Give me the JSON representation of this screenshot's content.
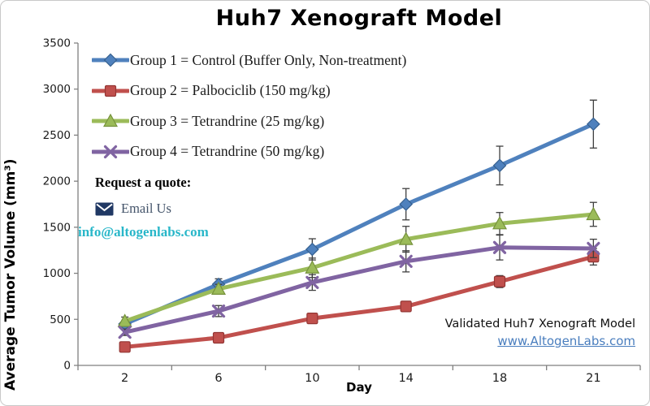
{
  "chart_data": {
    "type": "line",
    "title": "Huh7 Xenograft Model",
    "xlabel": "Day",
    "ylabel": "Average Tumor Volume (mm³)",
    "categories": [
      2,
      6,
      10,
      14,
      18,
      21
    ],
    "ylim": [
      0,
      3500
    ],
    "yticks": [
      0,
      500,
      1000,
      1500,
      2000,
      2500,
      3000,
      3500
    ],
    "grid": false,
    "legend_position": "top-left-inside",
    "error_bar_color": "#3f3f3f",
    "axis_color": "#7f7f7f",
    "series": [
      {
        "name": "group1",
        "label": "Group 1 = Control (Buffer Only, Non-treatment)",
        "color": "#4F81BD",
        "edge": "#36608f",
        "marker": "diamond",
        "values": [
          450,
          880,
          1260,
          1750,
          2170,
          2620
        ],
        "errors": [
          30,
          60,
          115,
          170,
          210,
          260
        ]
      },
      {
        "name": "group2",
        "label": "Group 2 = Palbociclib (150 mg/kg)",
        "color": "#C0504D",
        "edge": "#943634",
        "marker": "square",
        "values": [
          200,
          300,
          510,
          640,
          910,
          1180
        ],
        "errors": [
          20,
          25,
          35,
          45,
          65,
          90
        ]
      },
      {
        "name": "group3",
        "label": "Group 3 = Tetrandrine (25 mg/kg)",
        "color": "#9BBB59",
        "edge": "#76923c",
        "marker": "triangle",
        "values": [
          480,
          830,
          1060,
          1370,
          1540,
          1640
        ],
        "errors": [
          45,
          50,
          105,
          140,
          120,
          130
        ]
      },
      {
        "name": "group4",
        "label": "Group 4 = Tetrandrine (50 mg/kg)",
        "color": "#8064A2",
        "edge": "#5f497a",
        "marker": "x",
        "values": [
          360,
          590,
          900,
          1130,
          1280,
          1270
        ],
        "errors": [
          35,
          60,
          85,
          115,
          135,
          100
        ]
      }
    ]
  },
  "quote": {
    "heading": "Request a quote:",
    "email_label": "Email Us",
    "email_label_color": "#44546A",
    "email_address": "info@altogenlabs.com",
    "email_address_color": "#29B7C9",
    "envelope_color": "#203864"
  },
  "footer": {
    "line1": "Validated Huh7 Xenograft Model",
    "link": "www.AltogenLabs.com",
    "link_color": "#4A7EBE"
  }
}
